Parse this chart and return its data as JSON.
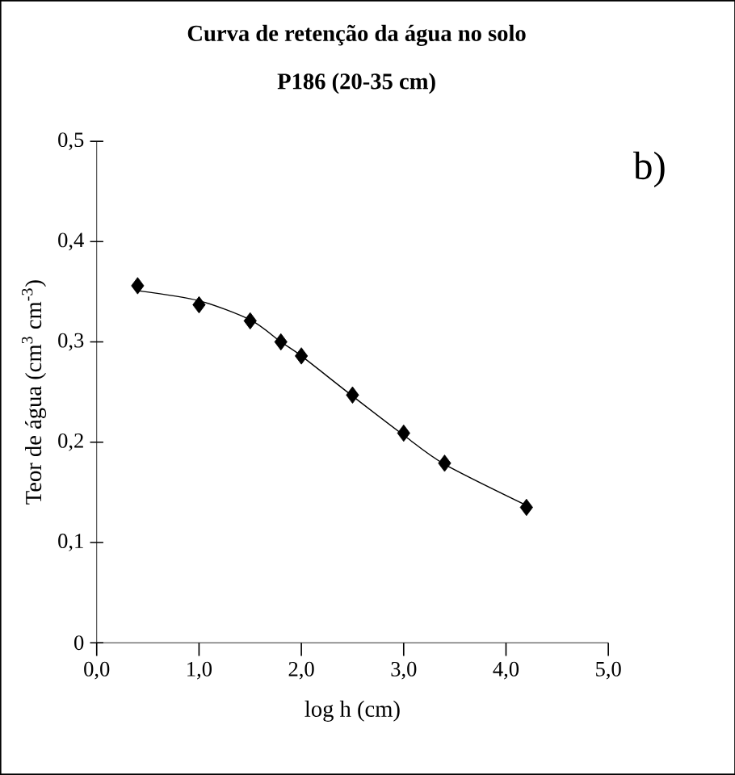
{
  "chart_data": {
    "type": "scatter",
    "title": "**Curva de retenção da água no solo**",
    "subtitle": "**P186 (20-35 cm)**",
    "xlabel": "log h (cm)",
    "ylabel": "Teor de água (cm$^{3}$ cm$^{-3}$)",
    "annotations": [
      "b)"
    ],
    "xlim": [
      0,
      5
    ],
    "ylim": [
      0,
      0.5
    ],
    "xticks": [
      {
        "value": 0,
        "label": "0,0"
      },
      {
        "value": 1,
        "label": "1,0"
      },
      {
        "value": 2,
        "label": "2,0"
      },
      {
        "value": 3,
        "label": "3,0"
      },
      {
        "value": 4,
        "label": "4,0"
      },
      {
        "value": 5,
        "label": "5,0"
      }
    ],
    "yticks": [
      0,
      {
        "value": 0.1,
        "label": "0,1"
      },
      {
        "value": 0.2,
        "label": "0,2"
      },
      {
        "value": 0.3,
        "label": "0,3"
      },
      {
        "value": 0.4,
        "label": "0,4"
      },
      {
        "value": 0.5,
        "label": "0,5"
      }
    ],
    "grid": false,
    "legend": false,
    "series": [
      {
        "color": "#000000",
        "marker": "diamond",
        "x": [
          0.4,
          1.0,
          1.5,
          1.8,
          2.0,
          2.5,
          3.0,
          3.4,
          4.2
        ],
        "values": [
          0.356,
          0.337,
          0.321,
          0.3,
          0.286,
          0.247,
          0.209,
          0.179,
          0.135
        ]
      },
      {
        "type": "line",
        "color": "#000000",
        "marker": "none",
        "line_style": "solid",
        "x": [
          0.4,
          1.0,
          1.5,
          1.8,
          2.0,
          2.5,
          3.0,
          3.4,
          4.2
        ],
        "values": [
          0.351,
          0.341,
          0.322,
          0.3,
          0.286,
          0.246,
          0.207,
          0.178,
          0.137
        ]
      }
    ]
  }
}
